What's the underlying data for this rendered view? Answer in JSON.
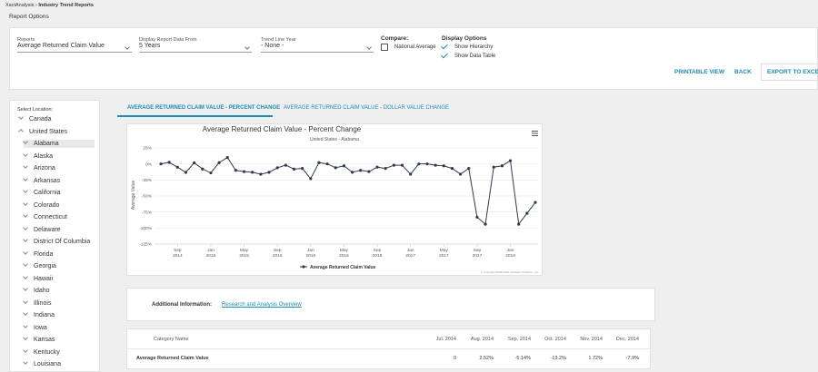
{
  "breadcrumb": [
    "XactAnalysis",
    "Industry Trend Reports"
  ],
  "page_title": "Report Options",
  "options": {
    "reports": {
      "label": "Reports",
      "value": "Average Returned Claim Value"
    },
    "period": {
      "label": "Display Report Data From",
      "value": "5 Years"
    },
    "trend_year": {
      "label": "Trend Line Year",
      "value": "- None -"
    },
    "compare": {
      "label": "Compare:",
      "option": "National Average"
    },
    "display": {
      "label": "Display Options",
      "options": [
        "Show Hierarchy",
        "Show Data Table"
      ]
    }
  },
  "buttons": [
    "PRINTABLE VIEW",
    "BACK",
    "EXPORT TO EXCEL"
  ],
  "locations": {
    "label": "Select Location:",
    "items": [
      {
        "name": "Canada",
        "expanded": false
      },
      {
        "name": "United States",
        "expanded": true,
        "children": [
          "Alabama",
          "Alaska",
          "Arizona",
          "Arkansas",
          "California",
          "Colorado",
          "Connecticut",
          "Delaware",
          "District Of Columbia",
          "Florida",
          "Georgia",
          "Hawaii",
          "Idaho",
          "Illinois",
          "Indiana",
          "Iowa",
          "Kansas",
          "Kentucky",
          "Louisiana"
        ]
      }
    ]
  },
  "tabs": [
    "AVERAGE RETURNED CLAIM VALUE - PERCENT CHANGE",
    "AVERAGE RETURNED CLAIM VALUE - DOLLAR VALUE CHANGE"
  ],
  "chart_data": {
    "type": "line",
    "title": "Average Returned Claim Value - Percent Change",
    "subtitle": "United States - Alabama",
    "y_label": "Average Value",
    "copyright": "© Copyright 2003-2018 Xactware Solutions, Inc.",
    "x": [
      "2014-07",
      "2014-08",
      "2014-09",
      "2014-10",
      "2014-11",
      "2014-12",
      "2015-01",
      "2015-02",
      "2015-03",
      "2015-04",
      "2015-05",
      "2015-06",
      "2015-07",
      "2015-08",
      "2015-09",
      "2015-10",
      "2015-11",
      "2015-12",
      "2016-01",
      "2016-02",
      "2016-03",
      "2016-04",
      "2016-05",
      "2016-06",
      "2016-07",
      "2016-08",
      "2016-09",
      "2016-10",
      "2016-11",
      "2016-12",
      "2017-01",
      "2017-02",
      "2017-03",
      "2017-04",
      "2017-05",
      "2017-06",
      "2017-07",
      "2017-08",
      "2017-09",
      "2017-10",
      "2017-11",
      "2017-12",
      "2018-01",
      "2018-02",
      "2018-03",
      "2018-04"
    ],
    "series": [
      {
        "name": "Average Returned Claim Value",
        "color": "#2f3b4c",
        "values": [
          0,
          2.52,
          -5.14,
          -13.2,
          1.72,
          -7.9,
          -14,
          2,
          10,
          -10,
          -12,
          -13,
          -16,
          -13,
          -6,
          -2,
          -8,
          -7,
          -23,
          2,
          0,
          -6,
          -3,
          -13,
          -10,
          -12,
          -5,
          -7,
          -2,
          -2,
          -16,
          0,
          0,
          -2,
          -3,
          -7,
          -16,
          -7,
          -83,
          -94,
          -5,
          -3,
          5,
          -94,
          -77,
          -60
        ]
      }
    ],
    "xlim": [
      "2014-07",
      "2018-04"
    ],
    "xticks": [
      {
        "value": "2014-09",
        "label": [
          "Sep",
          "2014"
        ]
      },
      {
        "value": "2015-01",
        "label": [
          "Jan",
          "2015"
        ]
      },
      {
        "value": "2015-05",
        "label": [
          "May",
          "2015"
        ]
      },
      {
        "value": "2015-09",
        "label": [
          "Sep",
          "2015"
        ]
      },
      {
        "value": "2016-01",
        "label": [
          "Jan",
          "2016"
        ]
      },
      {
        "value": "2016-05",
        "label": [
          "May",
          "2016"
        ]
      },
      {
        "value": "2016-09",
        "label": [
          "Sep",
          "2016"
        ]
      },
      {
        "value": "2017-01",
        "label": [
          "Jan",
          "2017"
        ]
      },
      {
        "value": "2017-05",
        "label": [
          "May",
          "2017"
        ]
      },
      {
        "value": "2017-09",
        "label": [
          "Sep",
          "2017"
        ]
      },
      {
        "value": "2018-01",
        "label": [
          "Jan",
          "2018"
        ]
      }
    ],
    "ylim": [
      -125,
      25
    ],
    "yticks": [
      {
        "value": 25,
        "label": "25%"
      },
      {
        "value": 0,
        "label": "0%"
      },
      {
        "value": -25,
        "label": "-25%"
      },
      {
        "value": -50,
        "label": "-50%"
      },
      {
        "value": -75,
        "label": "-75%"
      },
      {
        "value": -100,
        "label": "-100%"
      },
      {
        "value": -125,
        "label": "-125%"
      }
    ],
    "grid": true
  },
  "additional": {
    "label": "Additional Information:",
    "link": "Research and Analysis Overview"
  },
  "table": {
    "header": [
      "Category Name",
      "Jul. 2014",
      "Aug. 2014",
      "Sep. 2014",
      "Oct. 2014",
      "Nov. 2014",
      "Dec. 2014"
    ],
    "rows": [
      [
        "Average Returned Claim Value",
        "0",
        "2.52%",
        "-5.14%",
        "-13.2%",
        "1.72%",
        "-7.9%"
      ]
    ]
  }
}
